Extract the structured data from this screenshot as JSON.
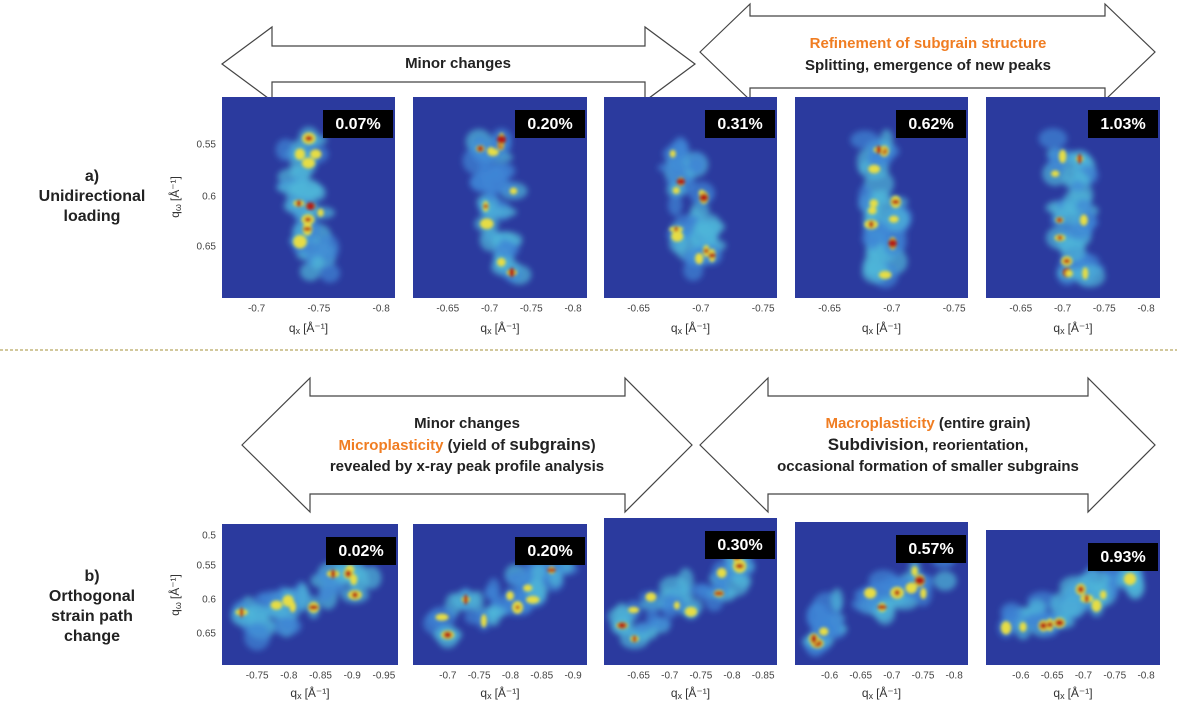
{
  "rows": [
    {
      "label": [
        "a)",
        "Unidirectional",
        "loading"
      ],
      "arrows": [
        {
          "lines": [
            [
              {
                "text": "Minor changes"
              }
            ]
          ]
        },
        {
          "lines": [
            [
              {
                "text": "Refinement of subgrain structure",
                "color": "#f07d22"
              }
            ],
            [
              {
                "text": "Splitting, emergence of new peaks"
              }
            ]
          ]
        }
      ],
      "y_label": {
        "base": "q",
        "sub": "ω",
        "unit": "[Å⁻¹]"
      },
      "yticks": [
        "0.55",
        "0.6",
        "0.65"
      ],
      "x_label": {
        "base": "q",
        "sub": "x",
        "unit": "[Å⁻¹]"
      },
      "panels": [
        {
          "strain": "0.07%",
          "xticks": [
            "-0.7",
            "-0.75",
            "-0.8"
          ]
        },
        {
          "strain": "0.20%",
          "xticks": [
            "-0.65",
            "-0.7",
            "-0.75",
            "-0.8"
          ]
        },
        {
          "strain": "0.31%",
          "xticks": [
            "-0.65",
            "-0.7",
            "-0.75"
          ]
        },
        {
          "strain": "0.62%",
          "xticks": [
            "-0.65",
            "-0.7",
            "-0.75"
          ]
        },
        {
          "strain": "1.03%",
          "xticks": [
            "-0.65",
            "-0.7",
            "-0.75",
            "-0.8"
          ]
        }
      ]
    },
    {
      "label": [
        "b)",
        "Orthogonal",
        "strain path",
        "change"
      ],
      "arrows": [
        {
          "lines": [
            [
              {
                "text": "Minor changes"
              }
            ],
            [
              {
                "text": "Microplasticity",
                "color": "#f07d22"
              },
              {
                "text": " (yield of "
              },
              {
                "text": "subgrains",
                "emphasis": true
              },
              {
                "text": ")"
              }
            ],
            [
              {
                "text": "revealed by x-ray peak profile analysis"
              }
            ]
          ]
        },
        {
          "lines": [
            [
              {
                "text": "Macroplasticity",
                "color": "#f07d22"
              },
              {
                "text": " (entire grain)"
              }
            ],
            [
              {
                "text": "Subdivision",
                "emphasis": true
              },
              {
                "text": ", reorientation,"
              }
            ],
            [
              {
                "text": "occasional formation of smaller subgrains"
              }
            ]
          ]
        }
      ],
      "y_label": {
        "base": "q",
        "sub": "ω",
        "unit": "[Å⁻¹]"
      },
      "yticks": [
        "0.5",
        "0.55",
        "0.6",
        "0.65"
      ],
      "x_label": {
        "base": "q",
        "sub": "x",
        "unit": "[Å⁻¹]"
      },
      "panels": [
        {
          "strain": "0.02%",
          "xticks": [
            "-0.75",
            "-0.8",
            "-0.85",
            "-0.9",
            "-0.95"
          ]
        },
        {
          "strain": "0.20%",
          "xticks": [
            "-0.7",
            "-0.75",
            "-0.8",
            "-0.85",
            "-0.9"
          ]
        },
        {
          "strain": "0.30%",
          "xticks": [
            "-0.65",
            "-0.7",
            "-0.75",
            "-0.8",
            "-0.85"
          ]
        },
        {
          "strain": "0.57%",
          "xticks": [
            "-0.6",
            "-0.65",
            "-0.7",
            "-0.75",
            "-0.8"
          ]
        },
        {
          "strain": "0.93%",
          "xticks": [
            "-0.6",
            "-0.65",
            "-0.7",
            "-0.75",
            "-0.8"
          ]
        }
      ]
    }
  ]
}
